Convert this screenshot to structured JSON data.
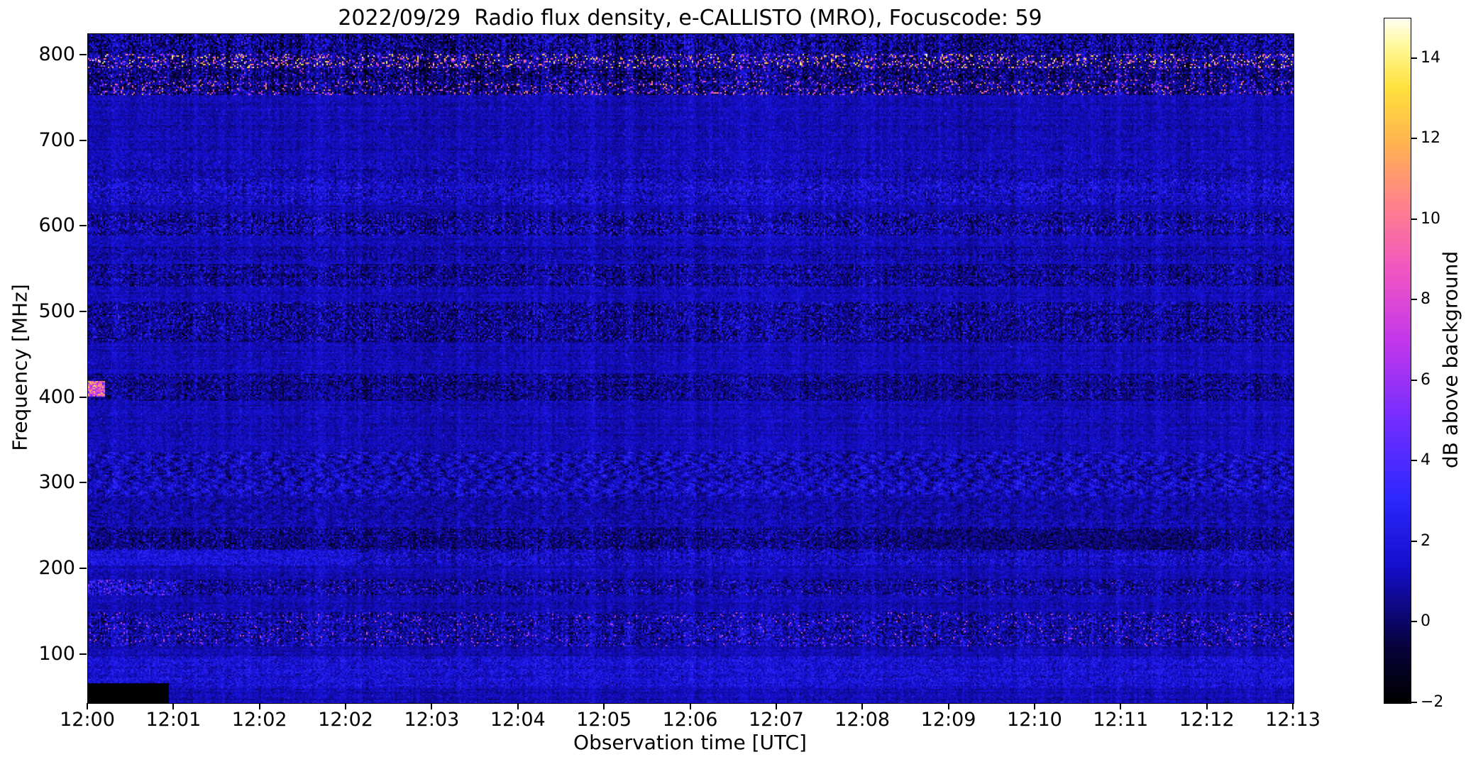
{
  "chart_data": {
    "type": "heatmap",
    "title": "2022/09/29  Radio flux density, e-CALLISTO (MRO), Focuscode: 59",
    "xlabel": "Observation time [UTC]",
    "ylabel": "Frequency [MHz]",
    "x_tick_labels": [
      "12:00",
      "12:01",
      "12:02",
      "12:02",
      "12:03",
      "12:04",
      "12:05",
      "12:06",
      "12:07",
      "12:08",
      "12:09",
      "12:10",
      "12:11",
      "12:12",
      "12:13"
    ],
    "y_tick_labels": [
      "800",
      "700",
      "600",
      "500",
      "400",
      "300",
      "200",
      "100"
    ],
    "y_tick_values": [
      800,
      700,
      600,
      500,
      400,
      300,
      200,
      100
    ],
    "x_range_utc": [
      "12:00:00",
      "12:13:50"
    ],
    "freq_range_mhz": [
      43.5,
      825
    ],
    "value_range_db": [
      -2,
      15
    ],
    "grid": false,
    "colorbar": {
      "label": "dB above background",
      "tick_labels": [
        "14",
        "12",
        "10",
        "8",
        "6",
        "4",
        "2",
        "0",
        "−2"
      ],
      "tick_values": [
        14,
        12,
        10,
        8,
        6,
        4,
        2,
        0,
        -2
      ]
    },
    "colormap_stops": [
      [
        0.0,
        0,
        0,
        0
      ],
      [
        0.08,
        8,
        2,
        60
      ],
      [
        0.2,
        20,
        15,
        205
      ],
      [
        0.3,
        45,
        40,
        255
      ],
      [
        0.42,
        120,
        45,
        255
      ],
      [
        0.53,
        195,
        55,
        235
      ],
      [
        0.63,
        240,
        85,
        195
      ],
      [
        0.73,
        255,
        130,
        140
      ],
      [
        0.82,
        255,
        180,
        80
      ],
      [
        0.9,
        255,
        225,
        60
      ],
      [
        0.96,
        255,
        248,
        150
      ],
      [
        1.0,
        255,
        255,
        240
      ]
    ],
    "background": {
      "mean": 1.1,
      "sigma": 0.4,
      "stripe": 0.35,
      "spot_prob": 0.003,
      "spot_min": 2,
      "spot_max": 3.2,
      "label": "quiet blue background"
    },
    "bands": [
      {
        "f_lo": 802,
        "f_hi": 825,
        "mean": 0.5,
        "sigma": 1.2,
        "stripe": 0.85,
        "spot_prob": 0.02,
        "spot_min": 2,
        "spot_max": 5,
        "label": "mottled striped band 800-825 MHz"
      },
      {
        "f_lo": 786,
        "f_hi": 802,
        "mean": 0.3,
        "sigma": 1.1,
        "stripe": 0.9,
        "spot_prob": 0.2,
        "spot_min": 3,
        "spot_max": 15,
        "label": "dense bright RFI line 790-800 MHz"
      },
      {
        "f_lo": 770,
        "f_hi": 786,
        "mean": 0.3,
        "sigma": 1.1,
        "stripe": 0.9,
        "spot_prob": 0.05,
        "spot_min": 2.5,
        "spot_max": 9,
        "label": "RFI speckle 770-785 MHz"
      },
      {
        "f_lo": 754,
        "f_hi": 770,
        "mean": 0.35,
        "sigma": 1.1,
        "stripe": 0.85,
        "spot_prob": 0.12,
        "spot_min": 3,
        "spot_max": 12,
        "label": "bright RFI line 755-770 MHz"
      },
      {
        "f_lo": 656,
        "f_hi": 678,
        "mean": 1.1,
        "sigma": 0.55,
        "stripe": 0.35,
        "spot_prob": 0.015,
        "spot_min": 2,
        "spot_max": 3.5,
        "label": "textured band 660-675 MHz"
      },
      {
        "f_lo": 626,
        "f_hi": 656,
        "mean": 1.4,
        "sigma": 0.75,
        "stripe": 0.5,
        "spot_prob": 0.03,
        "spot_min": 2,
        "spot_max": 4.2,
        "label": "bright textured band 630-655 MHz"
      },
      {
        "f_lo": 590,
        "f_hi": 616,
        "mean": 0.9,
        "sigma": 0.95,
        "stripe": 0.6,
        "spot_prob": 0.035,
        "spot_min": 2,
        "spot_max": 4.5,
        "label": "speckled band 595-615 MHz"
      },
      {
        "f_lo": 560,
        "f_hi": 576,
        "mean": 0.85,
        "sigma": 0.6,
        "stripe": 0.35,
        "label": "faint band 560-575 MHz"
      },
      {
        "f_lo": 530,
        "f_hi": 556,
        "mean": 0.6,
        "sigma": 0.85,
        "stripe": 0.55,
        "spot_prob": 0.02,
        "spot_min": 2,
        "spot_max": 4,
        "label": "mottled band 535-555 MHz"
      },
      {
        "f_lo": 466,
        "f_hi": 512,
        "mean": 0.6,
        "sigma": 0.9,
        "stripe": 0.55,
        "spot_prob": 0.03,
        "spot_min": 2,
        "spot_max": 4.2,
        "label": "mottled band 470-510 MHz"
      },
      {
        "f_lo": 396,
        "f_hi": 428,
        "mean": 0.55,
        "sigma": 0.8,
        "stripe": 0.5,
        "spot_prob": 0.012,
        "spot_min": 1.8,
        "spot_max": 3.2,
        "label": "dark textured band 400-425 MHz"
      },
      {
        "f_lo": 286,
        "f_hi": 336,
        "mean": 1.15,
        "sigma": 0.7,
        "stripe": 0.4,
        "wavy": 0.9,
        "spot_prob": 0.01,
        "spot_min": 2,
        "spot_max": 3.5,
        "label": "wavy interference pattern 290-335 MHz"
      },
      {
        "f_lo": 250,
        "f_hi": 286,
        "mean": 1.0,
        "sigma": 0.5,
        "stripe": 0.3,
        "wavy": 0.35,
        "label": "faint wavy band 250-285 MHz"
      },
      {
        "f_lo": 222,
        "f_hi": 248,
        "mean": 0.5,
        "sigma": 0.8,
        "stripe": 0.5,
        "spot_prob": 0.02,
        "spot_min": 1.8,
        "spot_max": 3.5,
        "label": "dark band 225-245 MHz"
      },
      {
        "f_lo": 204,
        "f_hi": 222,
        "mean": 1.3,
        "sigma": 0.7,
        "stripe": 0.45,
        "spot_prob": 0.02,
        "spot_min": 2,
        "spot_max": 4,
        "label": "blue band 205-220 MHz"
      },
      {
        "f_lo": 170,
        "f_hi": 188,
        "mean": 0.8,
        "sigma": 0.85,
        "stripe": 0.5,
        "spot_prob": 0.03,
        "spot_min": 2,
        "spot_max": 6,
        "label": "narrow speckled band 175-185 MHz"
      },
      {
        "f_lo": 110,
        "f_hi": 150,
        "mean": 1.0,
        "sigma": 0.95,
        "stripe": 0.6,
        "spot_prob": 0.045,
        "spot_min": 2.5,
        "spot_max": 9,
        "label": "RFI band 115-145 MHz with magenta bursts"
      },
      {
        "f_lo": 62,
        "f_hi": 98,
        "mean": 1.6,
        "sigma": 0.6,
        "stripe": 0.3,
        "spot_prob": 0.01,
        "spot_min": 2,
        "spot_max": 3.5,
        "label": "diffuse brighter band 65-95 MHz"
      }
    ],
    "patches": [
      {
        "t0": 0.0,
        "t1": 0.013,
        "f_lo": 401,
        "f_hi": 419,
        "mean": 8.0,
        "sigma": 2.0,
        "spot_prob": 0.2,
        "spot_min": 9,
        "spot_max": 13,
        "label": "bright orange burst at 12:00 near 410 MHz"
      },
      {
        "t0": 0.0,
        "t1": 0.075,
        "f_lo": 170,
        "f_hi": 188,
        "mean": 1.4,
        "sigma": 1.1,
        "spot_prob": 0.1,
        "spot_min": 3,
        "spot_max": 7,
        "label": "pink speckles near 180 MHz at start"
      },
      {
        "t0": 0.0,
        "t1": 0.22,
        "f_lo": 204,
        "f_hi": 222,
        "mean": 1.8,
        "sigma": 0.6,
        "label": "brighter blue 205-220 MHz segment at left"
      },
      {
        "t0": 0.68,
        "t1": 0.92,
        "f_lo": 222,
        "f_hi": 246,
        "mean": 0.15,
        "sigma": 0.7,
        "label": "darker patch 225-245 MHz between 12:09 and 12:13"
      },
      {
        "t0": 0.0,
        "t1": 0.067,
        "f_lo": 43.5,
        "f_hi": 67,
        "mean": -2.0,
        "sigma": 0.05,
        "label": "black data-gap rectangle 12:00-12:01 below 67 MHz"
      }
    ]
  }
}
